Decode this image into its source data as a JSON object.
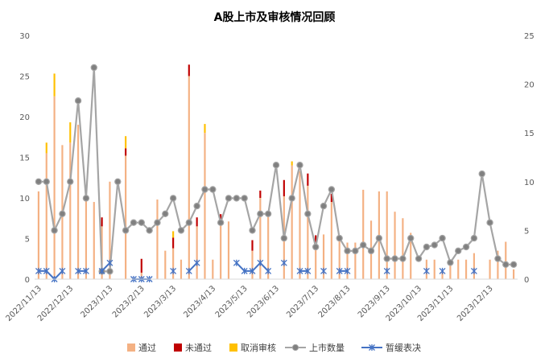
{
  "chart_data": {
    "type": "bar+line",
    "title": "A股上市及审核情况回顾",
    "y_left": {
      "ylim": [
        0,
        30
      ],
      "ticks": [
        "0",
        "5",
        "10",
        "15",
        "20",
        "25",
        "30"
      ]
    },
    "y_right": {
      "ylim": [
        0,
        25
      ],
      "ticks": [
        "0",
        "5",
        "10",
        "15",
        "20",
        "25"
      ]
    },
    "x_ticks": [
      {
        "label": "2022/11/13",
        "week": 0
      },
      {
        "label": "2022/12/13",
        "week": 4
      },
      {
        "label": "2023/1/13",
        "week": 9
      },
      {
        "label": "2023/2/13",
        "week": 13
      },
      {
        "label": "2023/3/13",
        "week": 17
      },
      {
        "label": "2023/4/13",
        "week": 22
      },
      {
        "label": "2023/5/13",
        "week": 26
      },
      {
        "label": "2023/6/13",
        "week": 30
      },
      {
        "label": "2023/7/13",
        "week": 35
      },
      {
        "label": "2023/8/13",
        "week": 39
      },
      {
        "label": "2023/9/13",
        "week": 44
      },
      {
        "label": "2023/10/13",
        "week": 48
      },
      {
        "label": "2023/11/13",
        "week": 52
      },
      {
        "label": "2023/12/13",
        "week": 57
      }
    ],
    "grid": false,
    "legend": "bottom",
    "n_weeks": 61,
    "series": [
      {
        "name": "通过",
        "type": "stacked-bar",
        "axis": "left",
        "color": "#F4B183",
        "values": [
          10.8,
          15.5,
          22.5,
          16.5,
          16.8,
          19,
          10.8,
          9.5,
          6.5,
          12,
          0,
          15.2,
          0,
          0.8,
          0,
          9.8,
          3.5,
          3.8,
          2.4,
          25,
          6.5,
          18,
          2.4,
          6.8,
          7.1,
          0,
          0,
          3.5,
          10,
          8.3,
          0,
          10.2,
          14,
          13.3,
          11.5,
          4.5,
          5.5,
          9.5,
          4.8,
          4.5,
          4.5,
          11,
          7.2,
          10.8,
          10.8,
          8.3,
          7.5,
          5.7,
          0,
          2.4,
          2.4,
          1,
          2.4,
          2.4,
          2.4,
          3.2,
          0,
          2.4,
          3.5,
          4.6,
          1.2
        ]
      },
      {
        "name": "未通过",
        "type": "stacked-bar",
        "axis": "left",
        "color": "#C00000",
        "values": [
          0,
          0,
          0,
          0,
          0,
          0,
          0,
          0,
          1.1,
          0,
          0,
          0.9,
          0,
          1.7,
          0,
          0,
          0,
          1.3,
          0,
          1.4,
          1.1,
          0,
          0,
          1.2,
          0,
          0,
          0,
          1.3,
          0.9,
          0,
          0,
          2,
          0,
          0,
          1.5,
          0.9,
          0,
          1,
          0,
          0,
          0,
          0,
          0,
          0,
          0,
          0,
          0,
          0,
          0,
          0,
          0,
          0,
          0,
          0,
          0,
          0,
          0,
          0,
          0,
          0,
          0
        ]
      },
      {
        "name": "取消审核",
        "type": "stacked-bar",
        "axis": "left",
        "color": "#FFC000",
        "values": [
          0,
          1.3,
          2.8,
          0,
          2.5,
          0,
          0,
          0,
          0,
          0,
          0,
          1.5,
          0,
          0,
          0,
          0,
          0,
          0.8,
          0,
          0,
          0,
          1.1,
          0,
          0,
          0,
          0,
          0,
          0,
          0,
          0,
          0,
          0,
          0.5,
          0,
          0,
          0,
          0,
          0,
          0,
          0,
          0,
          0,
          0,
          0,
          0,
          0,
          0,
          0,
          0,
          0,
          0,
          0,
          0,
          0,
          0,
          0,
          0,
          0,
          0,
          0,
          0
        ]
      },
      {
        "name": "上市数量",
        "type": "line",
        "axis": "right",
        "color": "#A5A5A5",
        "values": [
          10,
          10,
          5,
          6.7,
          10,
          18.3,
          8.3,
          21.7,
          0.8,
          0.8,
          10,
          5,
          5.8,
          5.8,
          5,
          5.8,
          6.7,
          8.3,
          5,
          5.8,
          7.5,
          9.2,
          9.2,
          5.8,
          8.3,
          8.3,
          8.3,
          5,
          6.7,
          6.7,
          11.7,
          4.2,
          8.3,
          11.7,
          6.7,
          3.3,
          7.5,
          9.2,
          4.2,
          2.9,
          2.9,
          3.5,
          2.9,
          4.2,
          2.1,
          2.1,
          2.1,
          4.2,
          2.1,
          3.3,
          3.5,
          4.2,
          1.7,
          2.9,
          3.3,
          4.2,
          10.8,
          5.8,
          2.1,
          1.5,
          1.5
        ]
      },
      {
        "name": "暂缓表决",
        "type": "line",
        "axis": "left",
        "color": "#4472C4",
        "values": [
          1,
          1,
          0,
          1,
          null,
          1,
          1,
          null,
          1,
          2,
          null,
          null,
          0,
          0,
          0,
          null,
          null,
          1,
          null,
          1,
          2,
          null,
          null,
          null,
          null,
          2,
          1,
          1,
          2,
          1,
          null,
          2,
          null,
          1,
          1,
          null,
          1,
          null,
          1,
          1,
          null,
          null,
          null,
          null,
          1,
          null,
          null,
          null,
          null,
          1,
          null,
          1,
          null,
          null,
          null,
          1,
          null,
          null,
          null,
          null,
          null
        ]
      }
    ]
  }
}
